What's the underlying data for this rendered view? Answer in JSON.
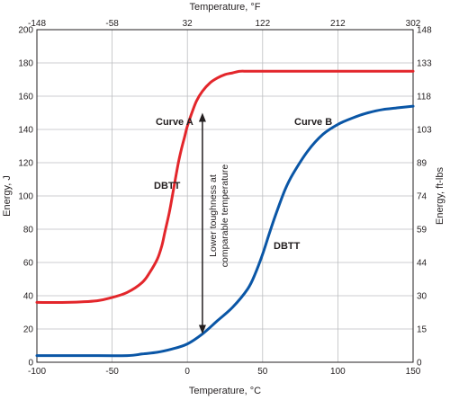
{
  "chart_data": {
    "type": "line",
    "xlabel": "Temperature, °C",
    "x2label": "Temperature, °F",
    "ylabel": "Energy, J",
    "y2label": "Energy, ft-lbs",
    "xlim": [
      -100,
      150
    ],
    "ylim": [
      0,
      200
    ],
    "x_ticks": [
      -100,
      -50,
      0,
      50,
      100,
      150
    ],
    "y_ticks": [
      0,
      20,
      40,
      60,
      80,
      100,
      120,
      140,
      160,
      180,
      200
    ],
    "x2_ticks": [
      "-148",
      "-58",
      "32",
      "122",
      "212",
      "302"
    ],
    "y2_ticks": [
      "0",
      "15",
      "30",
      "44",
      "59",
      "74",
      "89",
      "103",
      "118",
      "133",
      "148"
    ],
    "grid": true,
    "series": [
      {
        "name": "Curve A",
        "color": "#e3262b",
        "x": [
          -100,
          -80,
          -60,
          -50,
          -40,
          -30,
          -25,
          -20,
          -17,
          -15,
          -12,
          -10,
          -8,
          -6,
          -4,
          -2,
          0,
          3,
          6,
          10,
          15,
          20,
          25,
          30,
          35,
          40,
          50,
          70,
          100,
          150
        ],
        "y": [
          36,
          36,
          37,
          39,
          42,
          48,
          54,
          62,
          70,
          78,
          90,
          100,
          110,
          120,
          128,
          135,
          142,
          150,
          157,
          163,
          168,
          171,
          173,
          174,
          175,
          175,
          175,
          175,
          175,
          175
        ]
      },
      {
        "name": "Curve B",
        "color": "#0a56a6",
        "x": [
          -100,
          -70,
          -40,
          -30,
          -20,
          -10,
          0,
          10,
          20,
          30,
          40,
          45,
          50,
          55,
          60,
          65,
          70,
          80,
          90,
          100,
          110,
          120,
          130,
          140,
          150
        ],
        "y": [
          4,
          4,
          4,
          5,
          6,
          8,
          11,
          17,
          25,
          33,
          44,
          53,
          65,
          79,
          92,
          104,
          113,
          127,
          137,
          143,
          147,
          150,
          152,
          153,
          154
        ]
      }
    ],
    "annotations": {
      "curve_a": "Curve A",
      "curve_b": "Curve B",
      "dbtt_a": "DBTT",
      "dbtt_b": "DBTT",
      "arrow_line1": "Lower toughness at",
      "arrow_line2": "comparable temperature"
    },
    "arrow": {
      "x": 10,
      "y_top": 150,
      "y_bottom": 17
    }
  }
}
